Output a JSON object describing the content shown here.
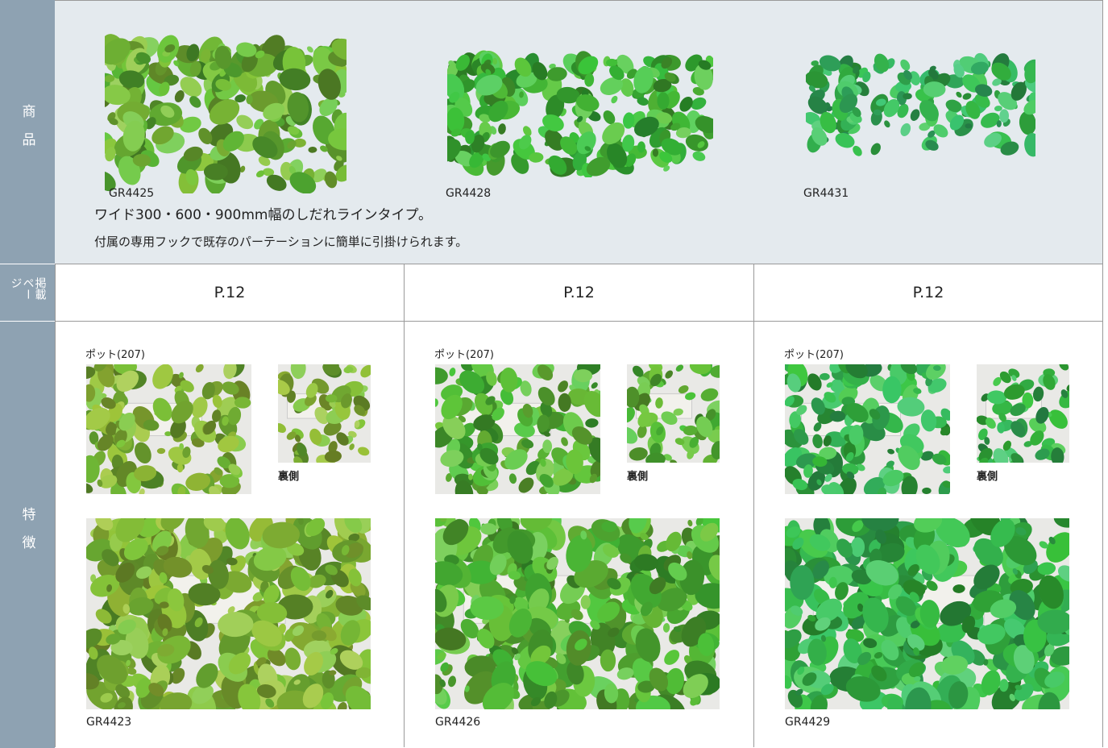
{
  "labels": {
    "product": "商品",
    "page": "掲載ページ",
    "features": "特徴"
  },
  "products": {
    "codes": [
      "GR4425",
      "GR4428",
      "GR4431"
    ],
    "description": [
      "ワイド300・600・900mm幅のしだれラインタイプ。",
      "付属の専用フックで既存のパーテーションに簡単に引掛けられます。"
    ]
  },
  "pages": [
    "P.12",
    "P.12",
    "P.12"
  ],
  "features": [
    {
      "pot_label": "ポット(207)",
      "back_label": "裏側",
      "code": "GR4423"
    },
    {
      "pot_label": "ポット(207)",
      "back_label": "裏側",
      "code": "GR4426"
    },
    {
      "pot_label": "ポット(207)",
      "back_label": "裏側",
      "code": "GR4429"
    }
  ]
}
